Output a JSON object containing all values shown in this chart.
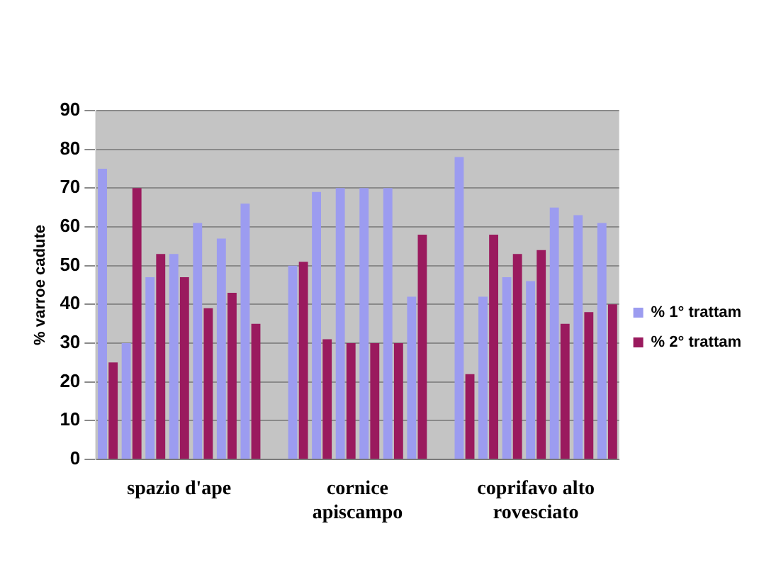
{
  "chart_data": {
    "type": "bar",
    "ylabel": "% varroe cadute",
    "categories": [
      null,
      null,
      null,
      null,
      null,
      null,
      null,
      null,
      null,
      null,
      null,
      null,
      null,
      null,
      null,
      null,
      null,
      null,
      null,
      null,
      null,
      null
    ],
    "series": [
      {
        "name": "% 1° trattam",
        "color": "#9c9cf0",
        "values": [
          75,
          30,
          47,
          53,
          61,
          57,
          66,
          null,
          50,
          69,
          70,
          70,
          70,
          42,
          null,
          78,
          42,
          47,
          46,
          65,
          63,
          61
        ]
      },
      {
        "name": "% 2° trattam",
        "color": "#9a1a5e",
        "values": [
          25,
          70,
          53,
          47,
          39,
          43,
          35,
          null,
          51,
          31,
          30,
          30,
          30,
          58,
          null,
          22,
          58,
          53,
          54,
          35,
          38,
          40
        ]
      }
    ],
    "annotations": [
      "spazio d'ape",
      "cornice\napiscampo",
      "coprifavo alto\nrovesciato"
    ],
    "ylim": [
      0,
      90
    ],
    "yticks": [
      0,
      10,
      20,
      30,
      40,
      50,
      60,
      70,
      80,
      90
    ],
    "grid": "y",
    "legend": "right"
  }
}
